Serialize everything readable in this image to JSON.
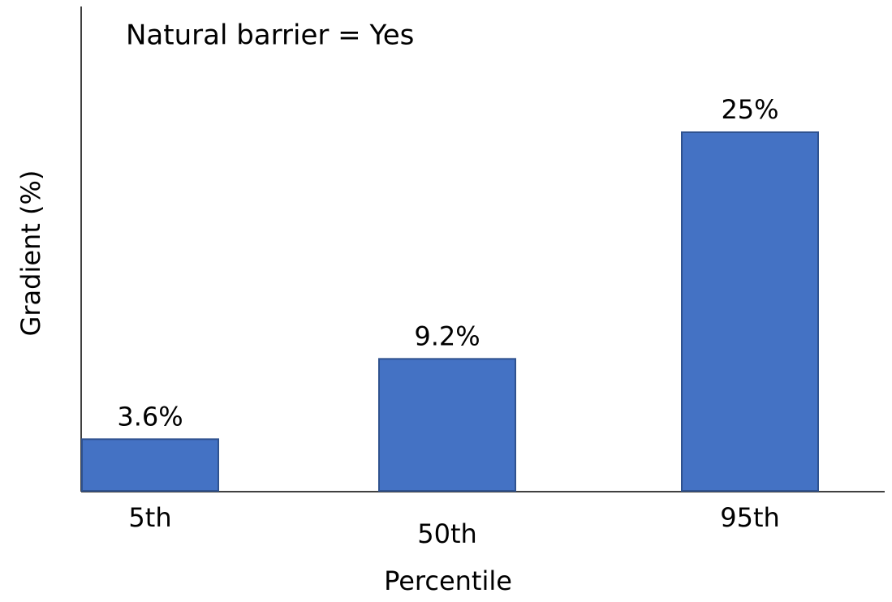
{
  "chart_data": {
    "type": "bar",
    "title": "Natural barrier = Yes",
    "x_label": "Percentile",
    "y_label": "Gradient (%)",
    "categories": [
      "5th",
      "50th",
      "95th"
    ],
    "values": [
      3.6,
      9.2,
      25
    ],
    "value_labels": [
      "3.6%",
      "9.2%",
      "25%"
    ],
    "color": "#4472c4"
  }
}
